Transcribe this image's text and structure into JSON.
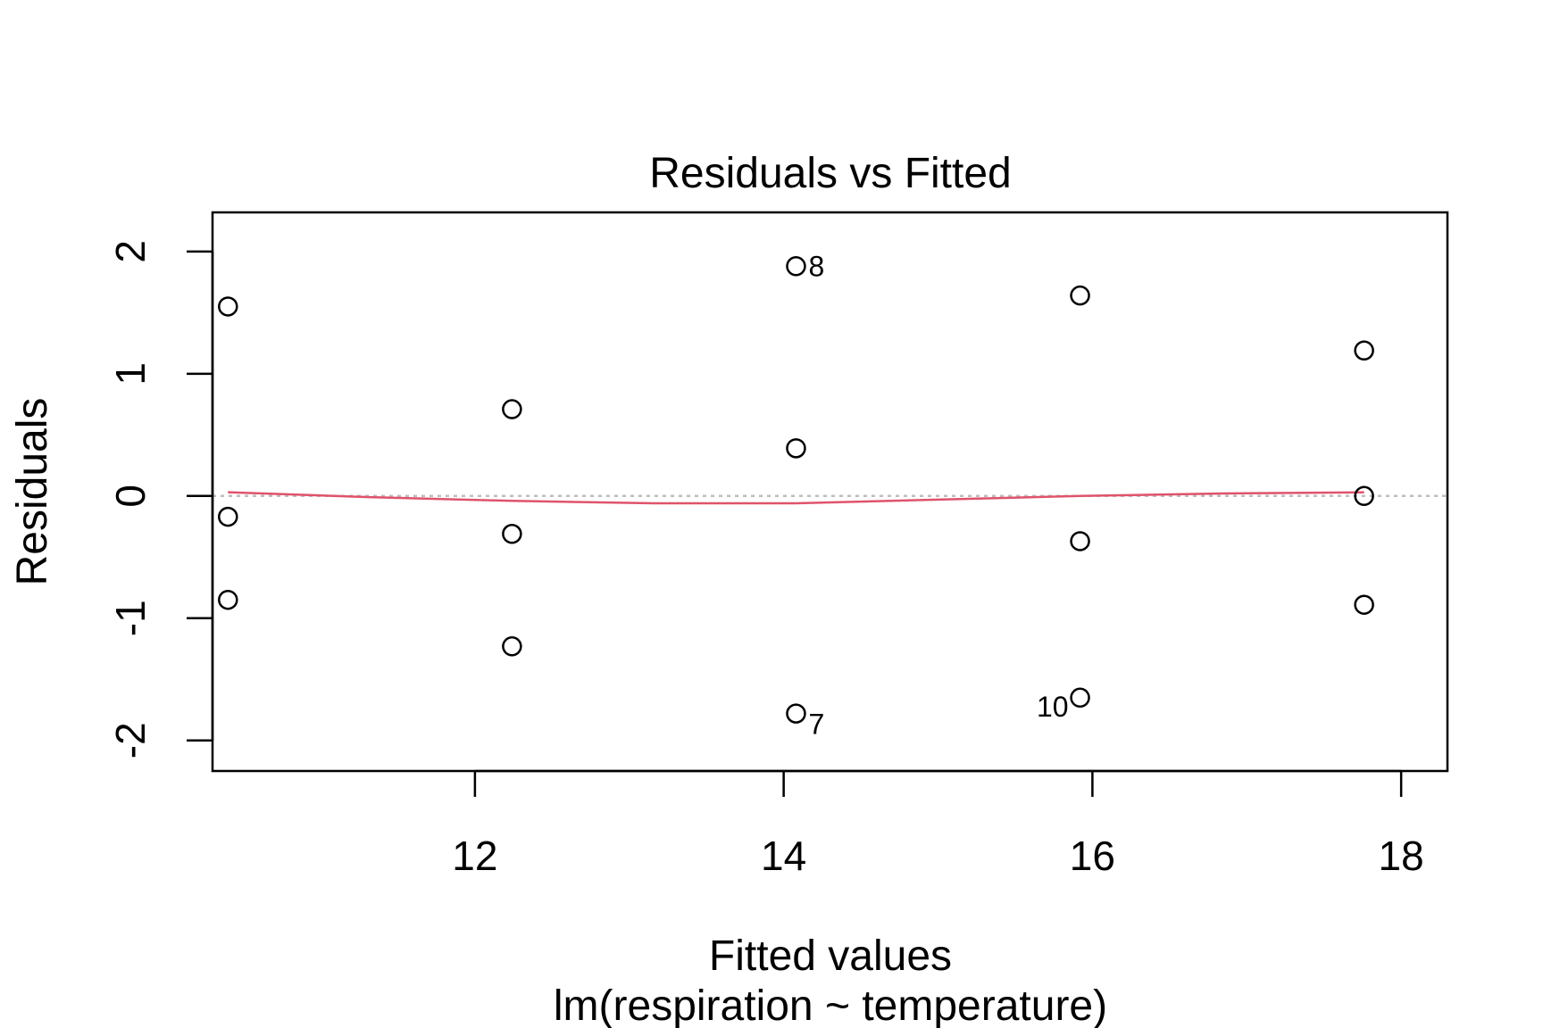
{
  "chart_data": {
    "type": "scatter",
    "title": "Residuals vs Fitted",
    "xlabel": "Fitted values",
    "xsublabel": "lm(respiration ~ temperature)",
    "ylabel": "Residuals",
    "xlim": [
      10.3,
      18.3
    ],
    "ylim": [
      -2.25,
      2.32
    ],
    "xticks": [
      12,
      14,
      16,
      18
    ],
    "yticks": [
      -2,
      -1,
      0,
      1,
      2
    ],
    "grid": false,
    "series": [
      {
        "points": [
          {
            "x": 10.4,
            "y": 1.55
          },
          {
            "x": 10.4,
            "y": -0.17
          },
          {
            "x": 10.4,
            "y": -0.85
          },
          {
            "x": 12.24,
            "y": 0.71
          },
          {
            "x": 12.24,
            "y": -0.31
          },
          {
            "x": 12.24,
            "y": -1.23
          },
          {
            "x": 14.08,
            "y": 1.88,
            "label": "8"
          },
          {
            "x": 14.08,
            "y": 0.39
          },
          {
            "x": 14.08,
            "y": -1.78,
            "label": "7"
          },
          {
            "x": 15.92,
            "y": 1.64
          },
          {
            "x": 15.92,
            "y": -0.37
          },
          {
            "x": 15.92,
            "y": -1.65,
            "label": "10"
          },
          {
            "x": 17.76,
            "y": 1.19
          },
          {
            "x": 17.76,
            "y": 0.0
          },
          {
            "x": 17.76,
            "y": -0.89
          }
        ]
      }
    ],
    "smooth_line": {
      "color": "#DF536B",
      "points": [
        {
          "x": 10.4,
          "y": 0.03
        },
        {
          "x": 11.32,
          "y": -0.01
        },
        {
          "x": 12.24,
          "y": -0.04
        },
        {
          "x": 13.16,
          "y": -0.06
        },
        {
          "x": 14.08,
          "y": -0.06
        },
        {
          "x": 15.0,
          "y": -0.03
        },
        {
          "x": 15.92,
          "y": 0.0
        },
        {
          "x": 16.84,
          "y": 0.02
        },
        {
          "x": 17.76,
          "y": 0.03
        }
      ]
    },
    "reference_line": {
      "y": 0,
      "color": "#BEBEBE",
      "style": "dotted"
    },
    "colors": {
      "points": "#000000",
      "smooth": "#DF536B",
      "reference": "#BEBEBE"
    }
  }
}
